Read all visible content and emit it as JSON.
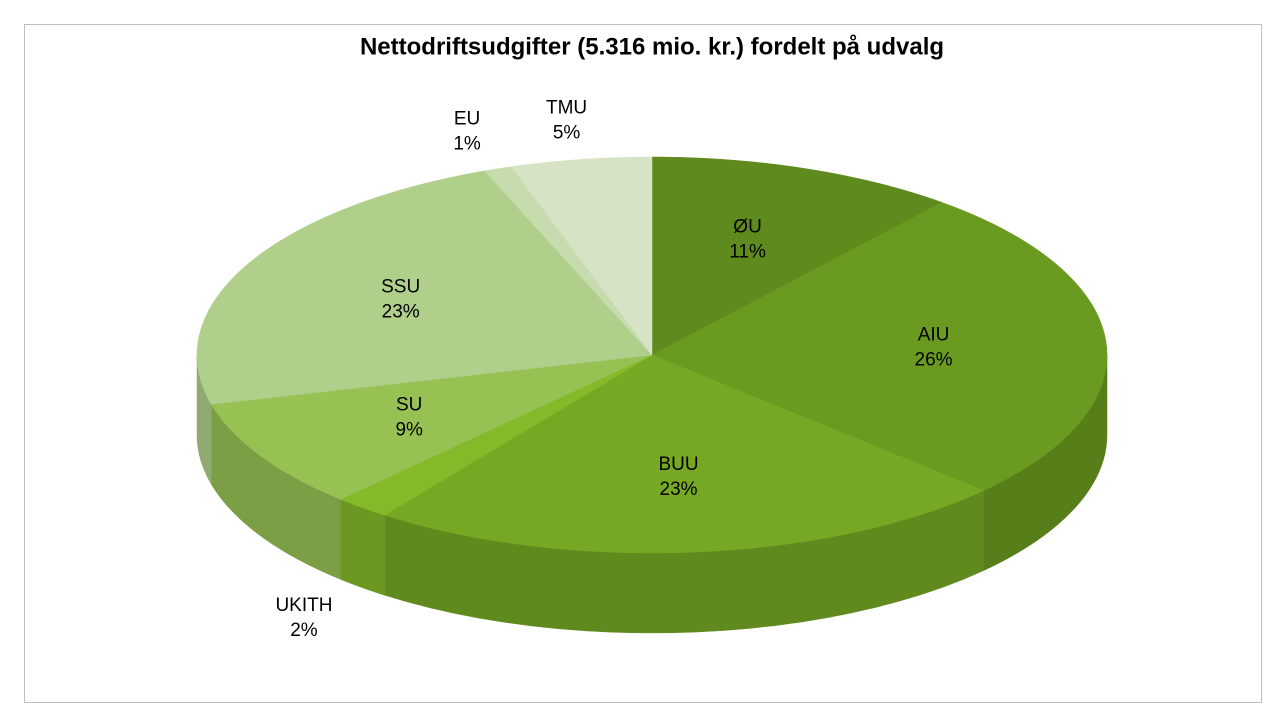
{
  "chart_data": {
    "type": "pie3d",
    "title": "Nettodriftsudgifter (5.316 mio. kr.) fordelt på udvalg",
    "categories": [
      "ØU",
      "AIU",
      "BUU",
      "UKITH",
      "SU",
      "SSU",
      "EU",
      "TMU"
    ],
    "values": [
      11,
      26,
      23,
      2,
      9,
      23,
      1,
      5
    ],
    "value_labels": [
      "11%",
      "26%",
      "23%",
      "2%",
      "9%",
      "23%",
      "1%",
      "5%"
    ],
    "colors": [
      "#5f8a1d",
      "#6a9a1f",
      "#76a824",
      "#84b92a",
      "#97c153",
      "#afcf8a",
      "#c6dcae",
      "#d6e4c5"
    ]
  }
}
